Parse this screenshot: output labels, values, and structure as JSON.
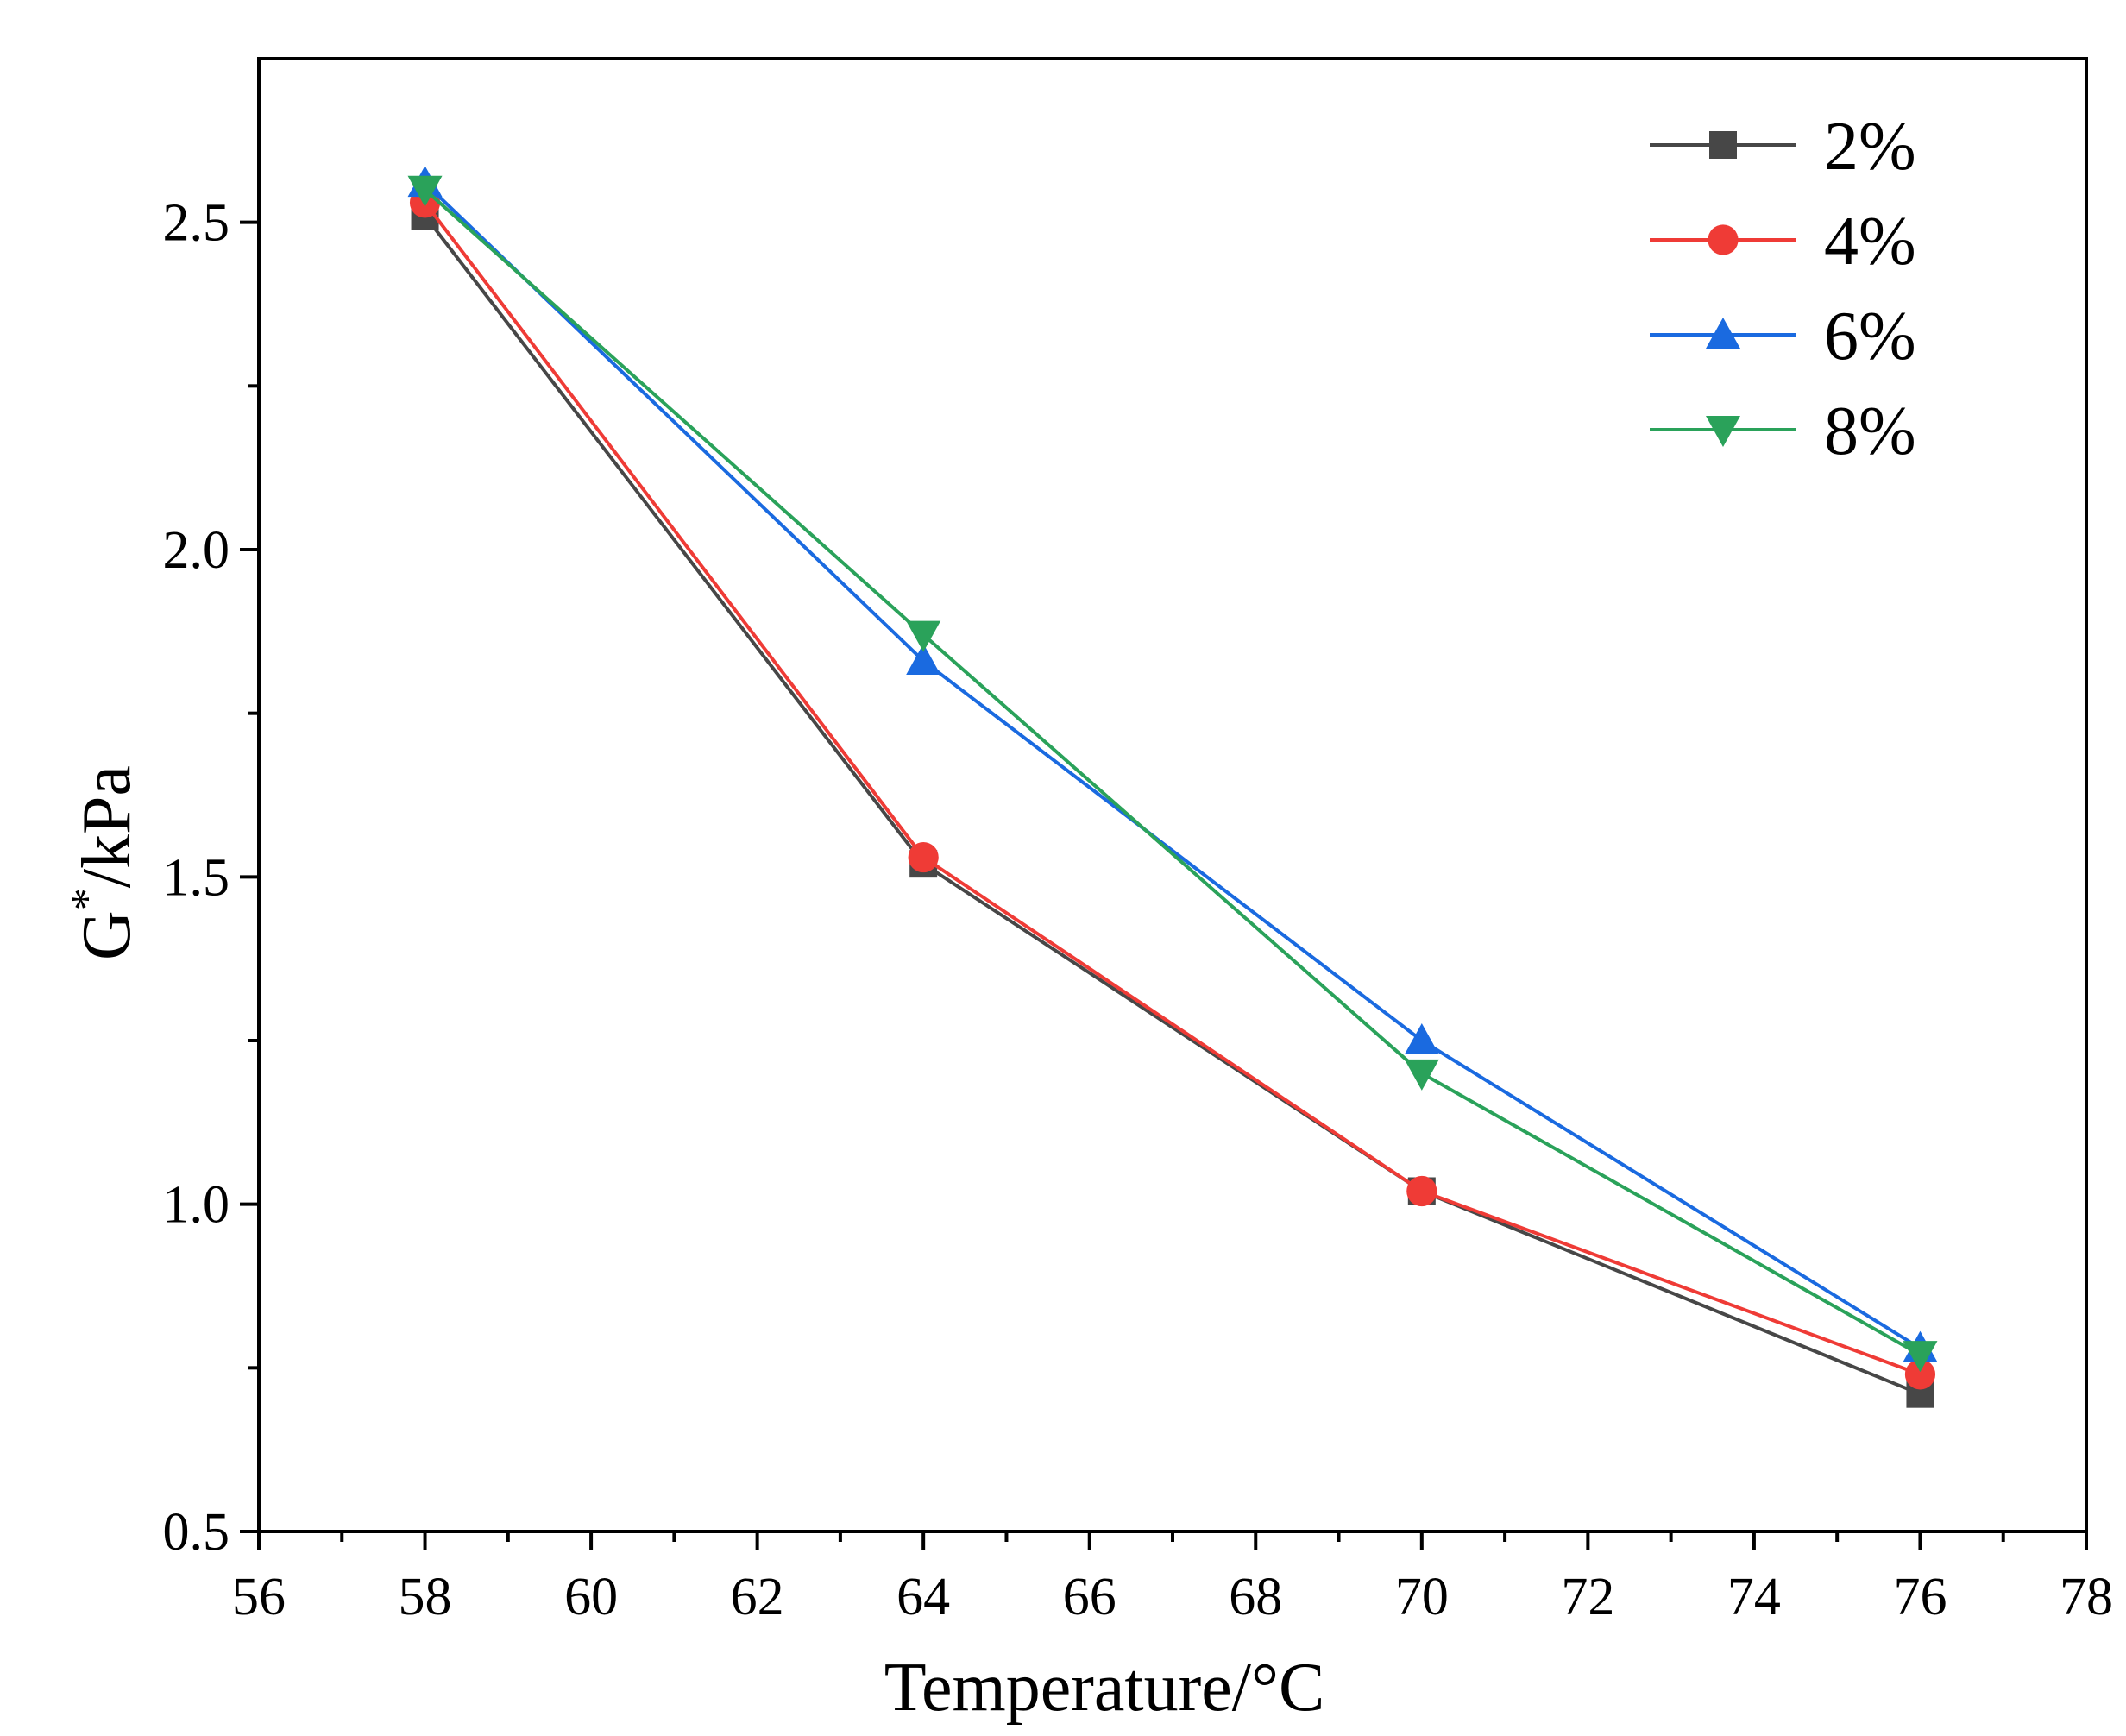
{
  "chart_data": {
    "type": "line",
    "title": "",
    "xlabel": "Temperature/°C",
    "ylabel_main": "G",
    "ylabel_sup": "*",
    "ylabel_rest": "/kPa",
    "xlim": [
      56,
      78
    ],
    "ylim": [
      0.5,
      2.75
    ],
    "x_ticks": [
      56,
      58,
      60,
      62,
      64,
      66,
      68,
      70,
      72,
      74,
      76,
      78
    ],
    "x_tick_labels": [
      "56",
      "58",
      "60",
      "62",
      "64",
      "66",
      "68",
      "70",
      "72",
      "74",
      "76",
      "78"
    ],
    "y_ticks": [
      0.5,
      1.0,
      1.5,
      2.0,
      2.5
    ],
    "y_tick_labels": [
      "0.5",
      "1.0",
      "1.5",
      "2.0",
      "2.5"
    ],
    "grid": false,
    "legend_position": "top-right",
    "x": [
      58,
      64,
      70,
      76
    ],
    "series": [
      {
        "name": "2%",
        "values": [
          2.51,
          1.52,
          1.02,
          0.71
        ],
        "color": "#474747",
        "marker": "square"
      },
      {
        "name": "4%",
        "values": [
          2.53,
          1.53,
          1.02,
          0.74
        ],
        "color": "#ef3b36",
        "marker": "circle"
      },
      {
        "name": "6%",
        "values": [
          2.56,
          1.83,
          1.25,
          0.78
        ],
        "color": "#1a6ae0",
        "marker": "triangle-up"
      },
      {
        "name": "8%",
        "values": [
          2.55,
          1.87,
          1.2,
          0.77
        ],
        "color": "#2aa25a",
        "marker": "triangle-down"
      }
    ]
  }
}
